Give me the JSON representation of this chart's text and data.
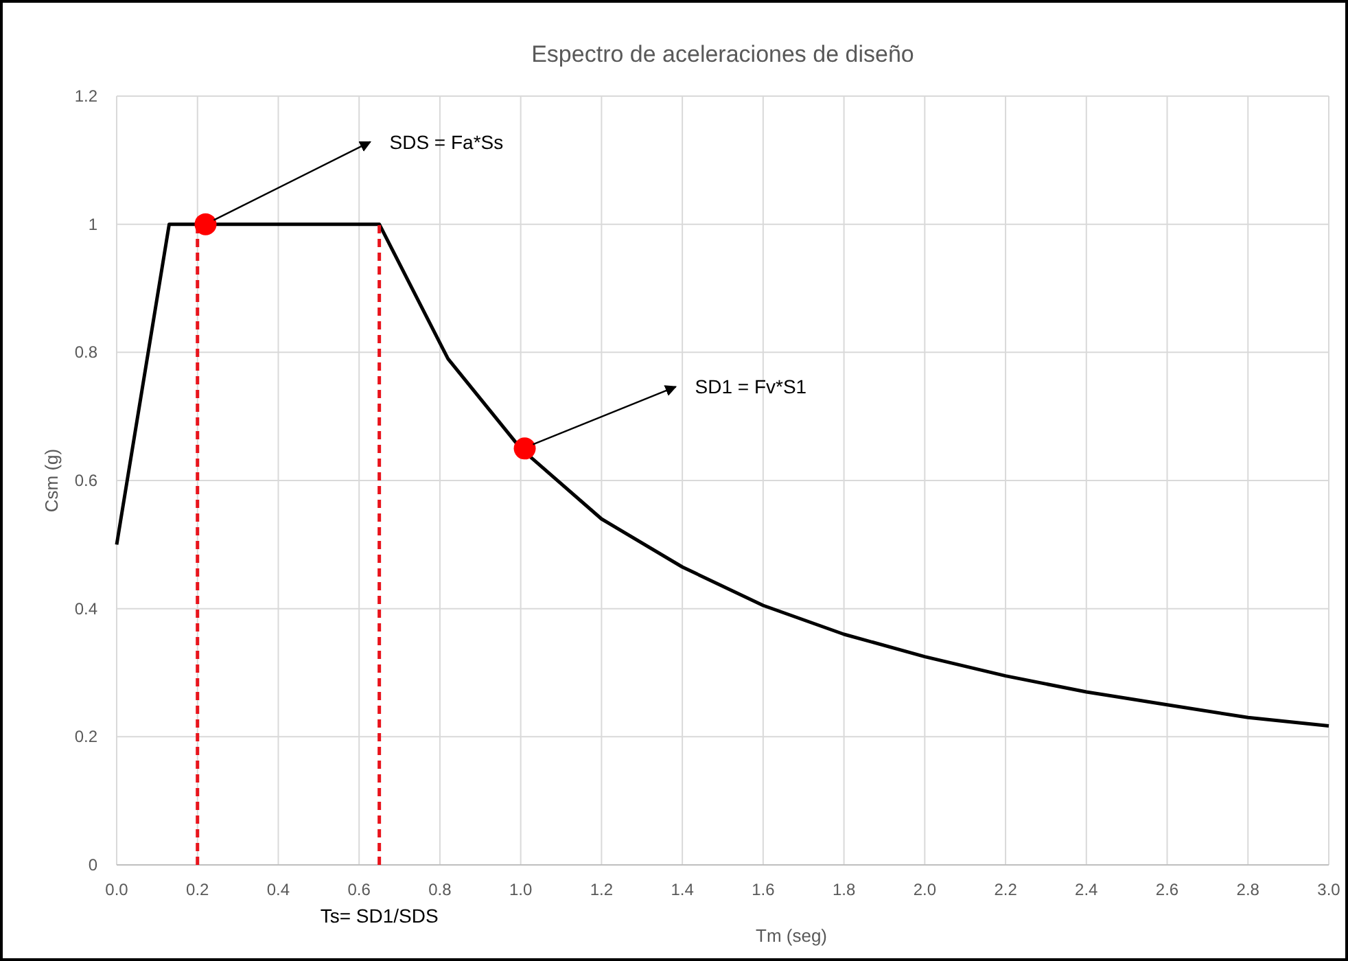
{
  "chart_data": {
    "type": "line",
    "title": "Espectro de aceleraciones de diseño",
    "xlabel": "Tm (seg)",
    "ylabel": "Csm (g)",
    "xlim": [
      0,
      3
    ],
    "ylim": [
      0,
      1.2
    ],
    "xticks": [
      {
        "value": 0,
        "label": "0.0"
      },
      {
        "value": 0.2,
        "label": "0.2"
      },
      {
        "value": 0.4,
        "label": "0.4"
      },
      {
        "value": 0.6,
        "label": "0.6"
      },
      {
        "value": 0.8,
        "label": "0.8"
      },
      {
        "value": 1,
        "label": "1.0"
      },
      {
        "value": 1.2,
        "label": "1.2"
      },
      {
        "value": 1.4,
        "label": "1.4"
      },
      {
        "value": 1.6,
        "label": "1.6"
      },
      {
        "value": 1.8,
        "label": "1.8"
      },
      {
        "value": 2,
        "label": "2.0"
      },
      {
        "value": 2.2,
        "label": "2.2"
      },
      {
        "value": 2.4,
        "label": "2.4"
      },
      {
        "value": 2.6,
        "label": "2.6"
      },
      {
        "value": 2.8,
        "label": "2.8"
      },
      {
        "value": 3,
        "label": "3.0"
      }
    ],
    "yticks": [
      0,
      0.2,
      0.4,
      0.6,
      0.8,
      1,
      1.2
    ],
    "grid": true,
    "series": [
      {
        "color": "#000000",
        "marker": "none",
        "line_style": "solid",
        "x": [
          0,
          0.13,
          0.65,
          0.82,
          1.0,
          1.2,
          1.4,
          1.6,
          1.8,
          2.0,
          2.2,
          2.4,
          2.6,
          2.8,
          3.0
        ],
        "values": [
          0.5,
          1.0,
          1.0,
          0.79,
          0.65,
          0.54,
          0.465,
          0.405,
          0.36,
          0.325,
          0.295,
          0.27,
          0.25,
          0.23,
          0.217
        ]
      },
      {
        "color": "#e8141c",
        "marker": "none",
        "line_style": "dashed",
        "x": [
          0.2,
          0.2
        ],
        "values": [
          0,
          1.0
        ]
      },
      {
        "color": "#e8141c",
        "marker": "none",
        "line_style": "dashed",
        "x": [
          0.65,
          0.65
        ],
        "values": [
          0,
          1.0
        ]
      },
      {
        "type": "scatter",
        "color": "#ff0000",
        "marker": "circle",
        "x": [
          0.22,
          1.01
        ],
        "values": [
          1.0,
          0.65
        ]
      }
    ],
    "annotations": [
      {
        "text": "SDS = Fa*Ss",
        "x": 0.22,
        "y": 1.0
      },
      {
        "text": "SD1 = Fv*S1",
        "x": 1.01,
        "y": 0.65
      },
      {
        "text": "Ts= SD1/SDS",
        "x": 0.65,
        "y": 0
      }
    ]
  }
}
